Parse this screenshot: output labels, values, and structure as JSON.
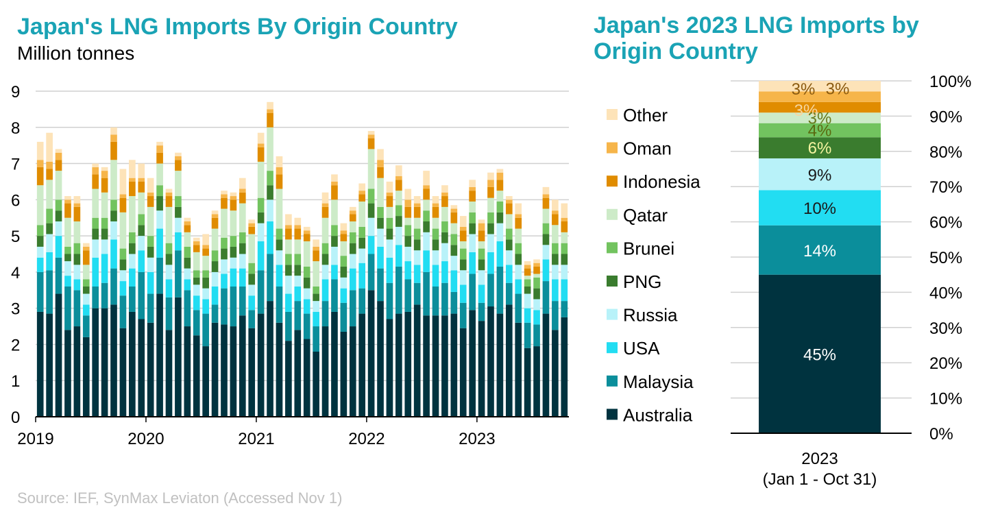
{
  "source_note": "Source: IEF, SynMax Leviaton (Accessed Nov 1)",
  "colors": {
    "Australia": "#00333f",
    "Malaysia": "#0b8e9b",
    "USA": "#22ddf2",
    "Russia": "#b8f2f9",
    "PNG": "#3a7c2e",
    "Brunei": "#72c35f",
    "Qatar": "#cdebc8",
    "Indonesia": "#e08c00",
    "Oman": "#f6b54a",
    "Other": "#fde3b8",
    "title": "#1aa3b5",
    "grid": "#d0d0d0"
  },
  "chart_data": [
    {
      "type": "bar",
      "stacked": true,
      "title": "Japan's LNG Imports By Origin Country",
      "subtitle": "Million tonnes",
      "ylim": [
        0,
        9
      ],
      "yticks": [
        "0",
        "1",
        "2",
        "3",
        "4",
        "5",
        "6",
        "7",
        "8",
        "9"
      ],
      "xtick_labels": [
        "2019",
        "2020",
        "2021",
        "2022",
        "2023"
      ],
      "grid": "horizontal",
      "categories": [
        "2019-01",
        "2019-02",
        "2019-03",
        "2019-04",
        "2019-05",
        "2019-06",
        "2019-07",
        "2019-08",
        "2019-09",
        "2019-10",
        "2019-11",
        "2019-12",
        "2020-01",
        "2020-02",
        "2020-03",
        "2020-04",
        "2020-05",
        "2020-06",
        "2020-07",
        "2020-08",
        "2020-09",
        "2020-10",
        "2020-11",
        "2020-12",
        "2021-01",
        "2021-02",
        "2021-03",
        "2021-04",
        "2021-05",
        "2021-06",
        "2021-07",
        "2021-08",
        "2021-09",
        "2021-10",
        "2021-11",
        "2021-12",
        "2022-01",
        "2022-02",
        "2022-03",
        "2022-04",
        "2022-05",
        "2022-06",
        "2022-07",
        "2022-08",
        "2022-09",
        "2022-10",
        "2022-11",
        "2022-12",
        "2023-01",
        "2023-02",
        "2023-03",
        "2023-04",
        "2023-05",
        "2023-06",
        "2023-07",
        "2023-08",
        "2023-09",
        "2023-10"
      ],
      "series": [
        {
          "name": "Australia",
          "values": [
            2.9,
            2.85,
            3.4,
            2.4,
            2.5,
            2.2,
            3.0,
            3.0,
            3.1,
            2.45,
            2.9,
            2.7,
            2.6,
            3.4,
            2.4,
            3.3,
            2.5,
            2.25,
            1.95,
            2.6,
            2.55,
            2.5,
            2.8,
            2.45,
            2.85,
            3.2,
            2.6,
            2.1,
            2.4,
            2.15,
            1.8,
            2.5,
            2.9,
            2.35,
            2.5,
            2.85,
            3.5,
            3.2,
            2.7,
            2.85,
            2.9,
            3.1,
            2.8,
            2.8,
            2.8,
            2.85,
            2.45,
            2.95,
            2.65,
            3.05,
            2.85,
            3.1,
            2.6,
            1.9,
            1.95,
            2.85,
            2.4,
            2.75
          ]
        },
        {
          "name": "Malaysia",
          "values": [
            1.1,
            1.2,
            1.0,
            1.2,
            1.0,
            0.6,
            0.6,
            0.7,
            1.0,
            0.9,
            0.7,
            1.3,
            0.8,
            1.0,
            0.9,
            1.3,
            1.0,
            0.7,
            0.9,
            0.5,
            1.0,
            1.1,
            0.8,
            0.5,
            1.2,
            1.3,
            1.0,
            0.8,
            0.8,
            0.7,
            0.7,
            0.7,
            0.9,
            0.8,
            1.0,
            0.7,
            1.0,
            0.9,
            1.0,
            1.3,
            0.9,
            0.6,
            1.2,
            0.8,
            0.9,
            0.6,
            0.7,
            1.0,
            0.5,
            0.9,
            1.3,
            0.6,
            0.8,
            0.7,
            0.6,
            0.9,
            0.8,
            0.45
          ]
        },
        {
          "name": "USA",
          "values": [
            0.4,
            0.5,
            0.6,
            0.3,
            0.3,
            0.3,
            0.8,
            0.8,
            0.8,
            0.4,
            0.5,
            0.6,
            0.6,
            0.8,
            0.5,
            0.5,
            0.3,
            0.4,
            0.4,
            0.5,
            0.4,
            0.5,
            0.5,
            0.4,
            0.8,
            0.9,
            0.6,
            0.5,
            0.4,
            0.4,
            0.4,
            0.6,
            0.4,
            0.4,
            0.6,
            0.7,
            0.5,
            0.6,
            0.7,
            0.6,
            0.5,
            0.5,
            0.6,
            0.6,
            0.6,
            0.6,
            0.5,
            0.6,
            0.5,
            0.6,
            0.7,
            0.5,
            0.4,
            0.4,
            0.4,
            0.6,
            0.6,
            0.6
          ]
        },
        {
          "name": "Russia",
          "values": [
            0.3,
            0.5,
            0.4,
            0.4,
            0.4,
            0.3,
            0.5,
            0.4,
            0.5,
            0.3,
            0.4,
            0.4,
            0.4,
            0.5,
            0.4,
            0.4,
            0.3,
            0.3,
            0.3,
            0.4,
            0.4,
            0.3,
            0.4,
            0.3,
            0.5,
            0.6,
            0.4,
            0.5,
            0.3,
            0.3,
            0.3,
            0.4,
            0.5,
            0.3,
            0.4,
            0.4,
            0.5,
            0.5,
            0.5,
            0.5,
            0.4,
            0.4,
            0.5,
            0.4,
            0.5,
            0.4,
            0.4,
            0.5,
            0.4,
            0.5,
            0.5,
            0.4,
            0.4,
            0.4,
            0.3,
            0.4,
            0.4,
            0.4
          ]
        },
        {
          "name": "PNG",
          "values": [
            0.3,
            0.3,
            0.3,
            0.2,
            0.3,
            0.2,
            0.3,
            0.3,
            0.3,
            0.3,
            0.3,
            0.3,
            0.3,
            0.4,
            0.3,
            0.3,
            0.3,
            0.2,
            0.3,
            0.3,
            0.3,
            0.3,
            0.3,
            0.3,
            0.3,
            0.4,
            0.3,
            0.3,
            0.3,
            0.3,
            0.2,
            0.3,
            0.3,
            0.3,
            0.3,
            0.3,
            0.4,
            0.3,
            0.3,
            0.3,
            0.3,
            0.3,
            0.3,
            0.3,
            0.3,
            0.3,
            0.3,
            0.3,
            0.3,
            0.3,
            0.3,
            0.3,
            0.3,
            0.2,
            0.3,
            0.3,
            0.3,
            0.3
          ]
        },
        {
          "name": "Brunei",
          "values": [
            0.3,
            0.4,
            0.3,
            0.2,
            0.3,
            0.2,
            0.3,
            0.3,
            0.3,
            0.3,
            0.3,
            0.3,
            0.3,
            0.3,
            0.3,
            0.3,
            0.3,
            0.2,
            0.2,
            0.3,
            0.3,
            0.3,
            0.3,
            0.3,
            0.4,
            0.4,
            0.3,
            0.3,
            0.3,
            0.3,
            0.2,
            0.3,
            0.3,
            0.3,
            0.3,
            0.3,
            0.4,
            0.3,
            0.3,
            0.3,
            0.3,
            0.3,
            0.3,
            0.3,
            0.3,
            0.3,
            0.3,
            0.3,
            0.3,
            0.3,
            0.3,
            0.3,
            0.3,
            0.2,
            0.3,
            0.3,
            0.3,
            0.3
          ]
        },
        {
          "name": "Qatar",
          "values": [
            1.1,
            0.8,
            0.8,
            0.8,
            0.6,
            0.4,
            0.8,
            0.7,
            1.1,
            1.0,
            1.0,
            0.6,
            0.8,
            0.6,
            1.0,
            0.7,
            0.4,
            0.5,
            0.4,
            0.6,
            0.8,
            0.7,
            0.8,
            0.8,
            1.0,
            1.2,
            1.1,
            0.4,
            0.4,
            0.7,
            0.7,
            0.7,
            0.7,
            0.4,
            0.3,
            0.7,
            1.1,
            0.8,
            0.3,
            0.4,
            0.2,
            0.3,
            0.3,
            0.3,
            0.4,
            0.3,
            0.2,
            0.3,
            0.2,
            0.4,
            0.3,
            0.4,
            0.4,
            0.1,
            0.1,
            0.4,
            0.5,
            0.3
          ]
        },
        {
          "name": "Indonesia",
          "values": [
            0.5,
            0.3,
            0.3,
            0.4,
            0.4,
            0.4,
            0.4,
            0.4,
            0.5,
            0.4,
            0.4,
            0.3,
            0.3,
            0.3,
            0.3,
            0.3,
            0.2,
            0.2,
            0.2,
            0.3,
            0.3,
            0.3,
            0.3,
            0.2,
            0.4,
            0.4,
            0.4,
            0.3,
            0.3,
            0.2,
            0.3,
            0.3,
            0.4,
            0.2,
            0.2,
            0.2,
            0.3,
            0.3,
            0.3,
            0.3,
            0.3,
            0.3,
            0.3,
            0.3,
            0.3,
            0.3,
            0.3,
            0.3,
            0.3,
            0.3,
            0.3,
            0.3,
            0.3,
            0.2,
            0.2,
            0.3,
            0.3,
            0.3
          ]
        },
        {
          "name": "Oman",
          "values": [
            0.2,
            0.2,
            0.2,
            0.1,
            0.1,
            0.1,
            0.2,
            0.2,
            0.2,
            0.1,
            0.1,
            0.1,
            0.1,
            0.2,
            0.1,
            0.1,
            0.1,
            0.1,
            0.1,
            0.1,
            0.1,
            0.1,
            0.1,
            0.1,
            0.1,
            0.1,
            0.2,
            0.1,
            0.1,
            0.1,
            0.1,
            0.1,
            0.1,
            0.1,
            0.1,
            0.1,
            0.1,
            0.2,
            0.1,
            0.1,
            0.2,
            0.1,
            0.1,
            0.1,
            0.1,
            0.1,
            0.1,
            0.1,
            0.2,
            0.2,
            0.2,
            0.1,
            0.1,
            0.1,
            0.1,
            0.1,
            0.1,
            0.1
          ]
        },
        {
          "name": "Other",
          "values": [
            0.5,
            0.8,
            0.1,
            0.1,
            0.2,
            0.1,
            0.1,
            0.1,
            0.2,
            0.7,
            0.5,
            0.4,
            0.4,
            0.1,
            0.1,
            0.1,
            0.1,
            0.1,
            0.3,
            0.1,
            0.1,
            0.1,
            0.3,
            0.1,
            0.3,
            0.2,
            0.3,
            0.3,
            0.2,
            0.1,
            0.2,
            0.3,
            0.2,
            0.2,
            0.1,
            0.2,
            0.1,
            0.3,
            0.3,
            0.3,
            0.3,
            0.2,
            0.4,
            0.2,
            0.2,
            0.1,
            0.3,
            0.2,
            0.1,
            0.2,
            0.1,
            0.1,
            0.3,
            0.1,
            0.1,
            0.2,
            0.3,
            0.4
          ]
        }
      ]
    },
    {
      "type": "bar",
      "stacked": true,
      "percent": true,
      "title": "Japan's 2023 LNG Imports by Origin Country",
      "category_label": [
        "2023",
        "(Jan 1 - Oct 31)"
      ],
      "ylim": [
        0,
        100
      ],
      "yticks": [
        "0%",
        "10%",
        "20%",
        "30%",
        "40%",
        "50%",
        "60%",
        "70%",
        "80%",
        "90%",
        "100%"
      ],
      "legend": [
        "Other",
        "Oman",
        "Indonesia",
        "Qatar",
        "Brunei",
        "PNG",
        "Russia",
        "USA",
        "Malaysia",
        "Australia"
      ],
      "legend_position": "left",
      "series": [
        {
          "name": "Australia",
          "value": 45,
          "label": "45%"
        },
        {
          "name": "Malaysia",
          "value": 14,
          "label": "14%"
        },
        {
          "name": "USA",
          "value": 10,
          "label": "10%"
        },
        {
          "name": "Russia",
          "value": 9,
          "label": "9%"
        },
        {
          "name": "PNG",
          "value": 6,
          "label": "6%"
        },
        {
          "name": "Brunei",
          "value": 4,
          "label": "4%"
        },
        {
          "name": "Qatar",
          "value": 3,
          "label": "3%"
        },
        {
          "name": "Indonesia",
          "value": 3,
          "label": "3%"
        },
        {
          "name": "Oman",
          "value": 3,
          "label": "3%"
        },
        {
          "name": "Other",
          "value": 3,
          "label": "3%"
        }
      ]
    }
  ]
}
